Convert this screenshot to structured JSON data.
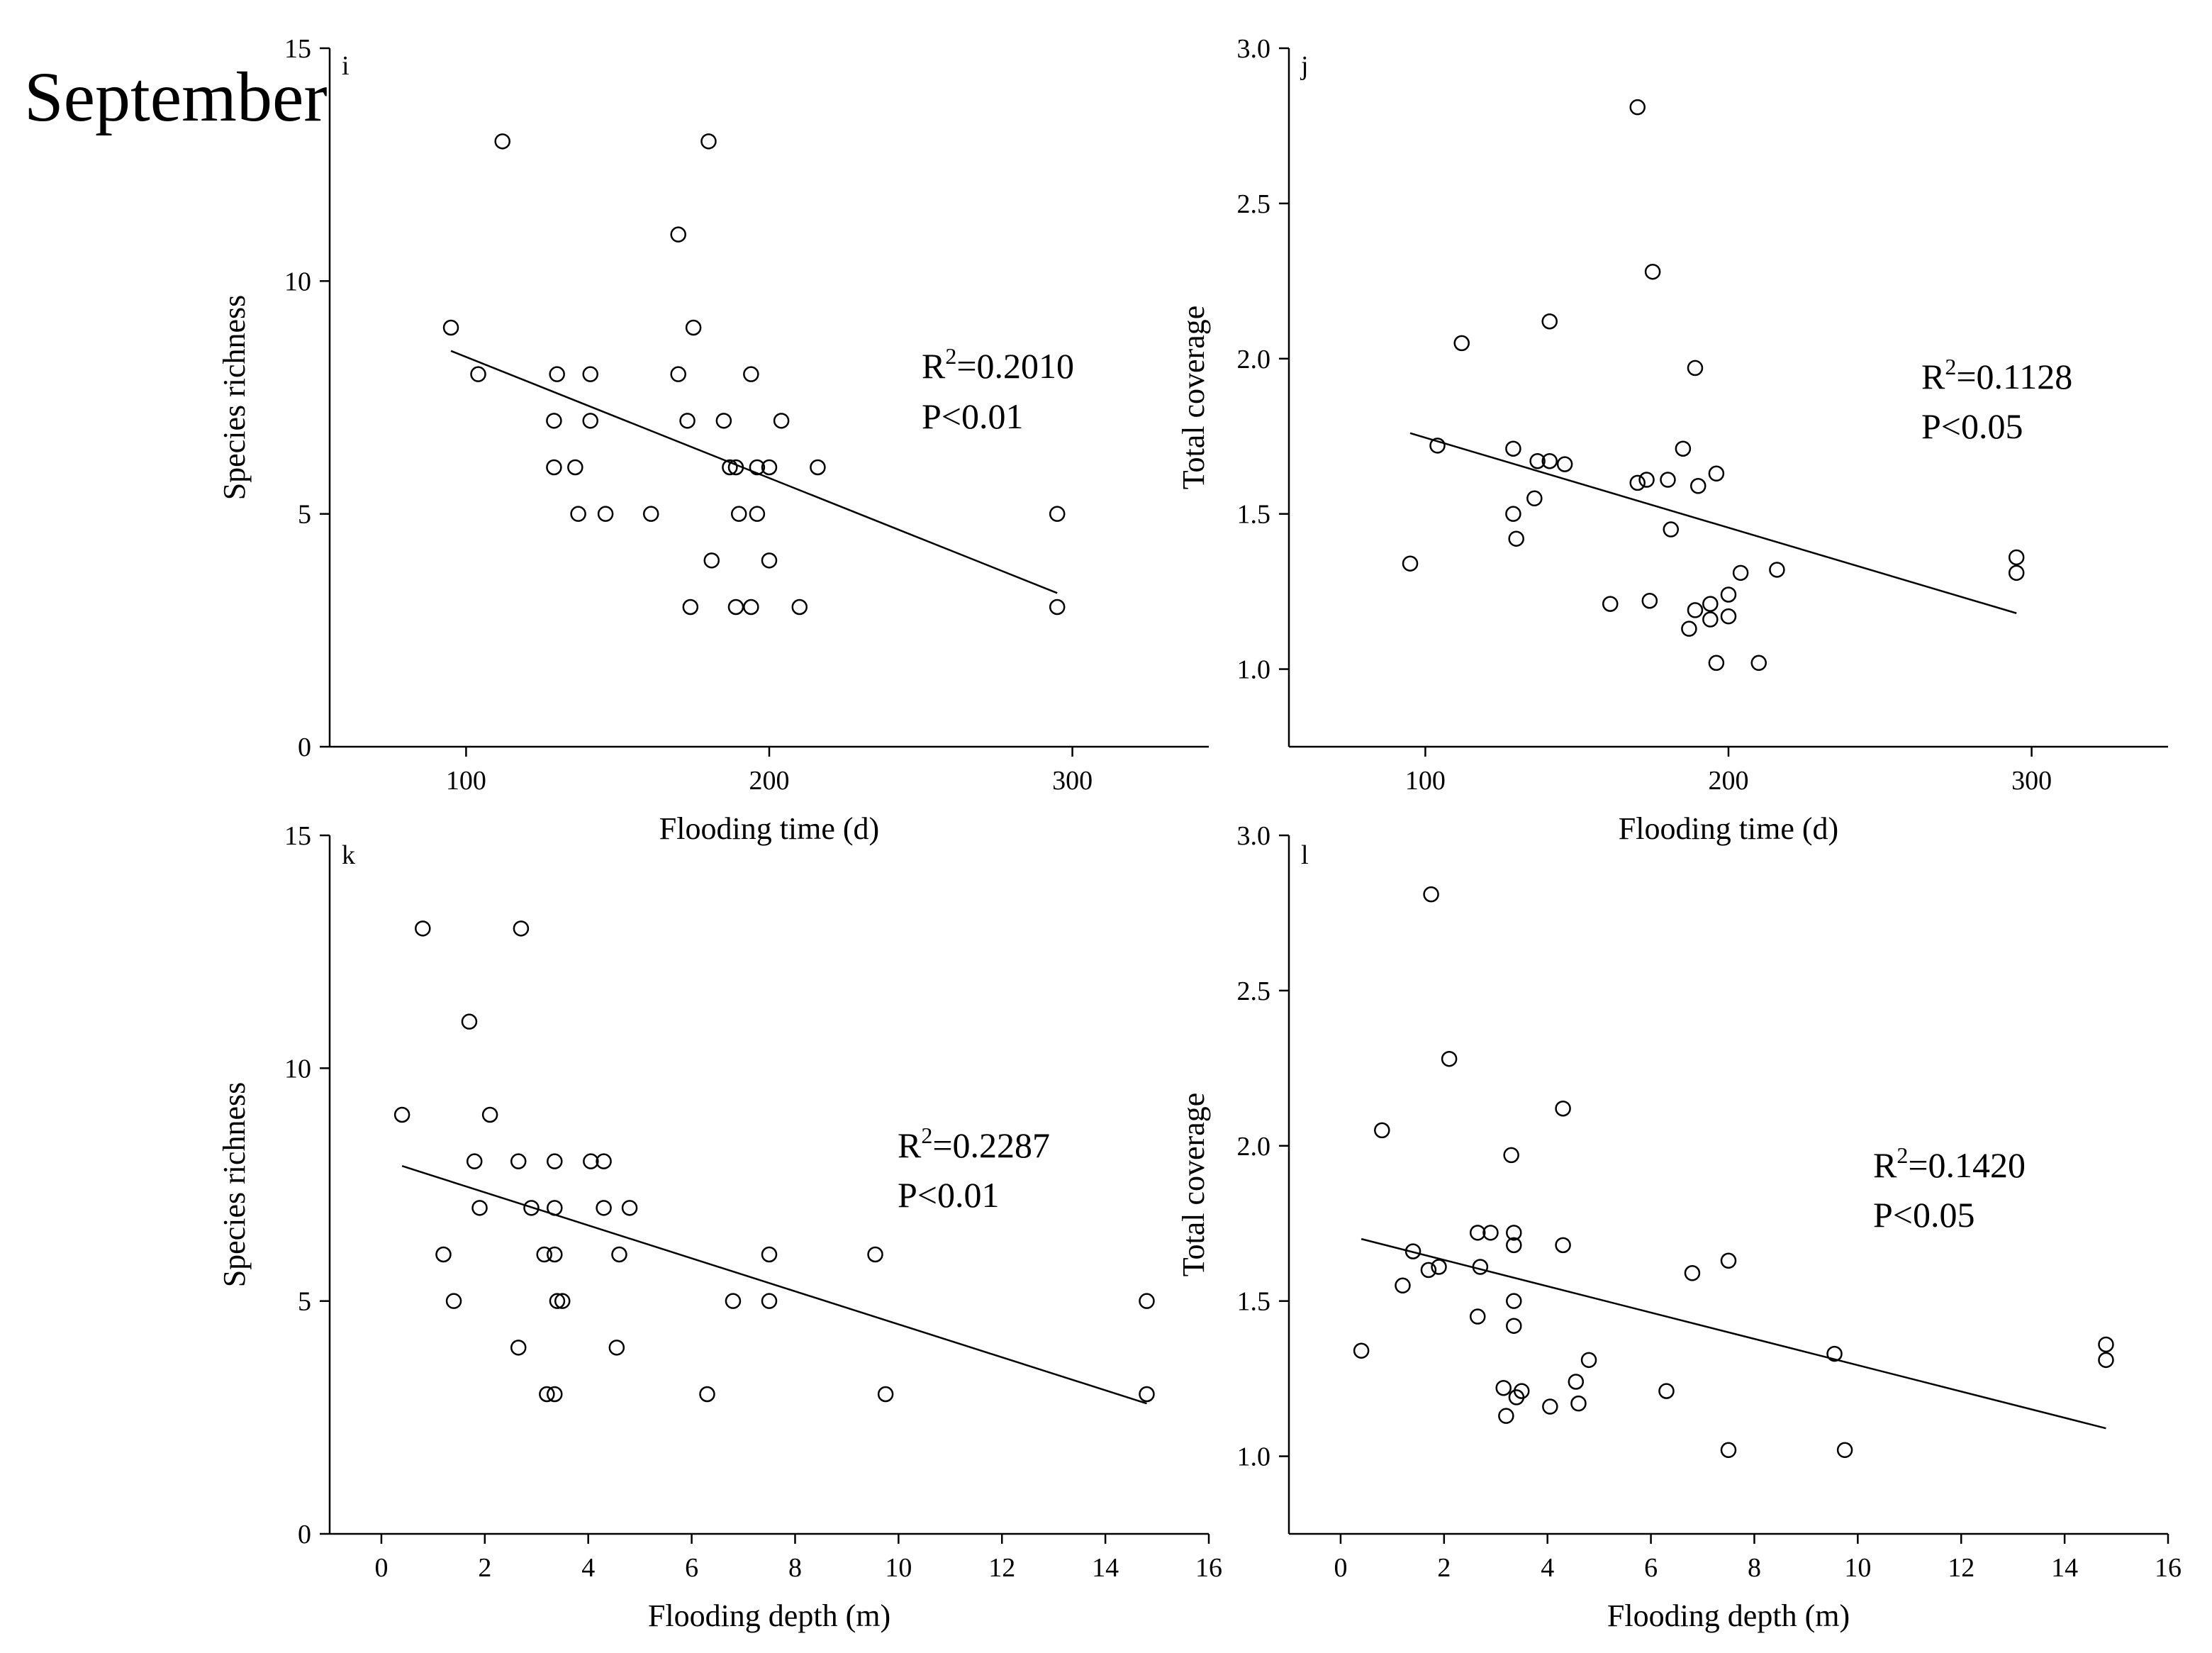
{
  "figure_label": "September",
  "chart_data": [
    {
      "panel": "i",
      "type": "scatter",
      "xlabel": "Flooding time (d)",
      "ylabel": "Species richness",
      "xlim": [
        55,
        345
      ],
      "ylim": [
        0,
        15
      ],
      "xticks": [
        100,
        200,
        300
      ],
      "yticks": [
        0,
        5,
        10,
        15
      ],
      "points": [
        [
          95,
          9
        ],
        [
          104,
          8
        ],
        [
          112,
          13
        ],
        [
          129,
          7
        ],
        [
          129,
          6
        ],
        [
          130,
          8
        ],
        [
          136,
          6
        ],
        [
          137,
          5
        ],
        [
          141,
          8
        ],
        [
          141,
          7
        ],
        [
          146,
          5
        ],
        [
          161,
          5
        ],
        [
          170,
          11
        ],
        [
          170,
          8
        ],
        [
          173,
          7
        ],
        [
          174,
          3
        ],
        [
          175,
          9
        ],
        [
          180,
          13
        ],
        [
          181,
          4
        ],
        [
          185,
          7
        ],
        [
          187,
          6
        ],
        [
          189,
          6
        ],
        [
          189,
          3
        ],
        [
          190,
          5
        ],
        [
          194,
          8
        ],
        [
          194,
          3
        ],
        [
          196,
          6
        ],
        [
          196,
          5
        ],
        [
          200,
          6
        ],
        [
          200,
          4
        ],
        [
          204,
          7
        ],
        [
          210,
          3
        ],
        [
          216,
          6
        ],
        [
          295,
          5
        ],
        [
          295,
          3
        ]
      ],
      "fit_line": [
        [
          95,
          8.5
        ],
        [
          295,
          3.3
        ]
      ],
      "annotation": {
        "r2_prefix": "R",
        "r2_sup": "2",
        "r2_value": "=0.2010",
        "p_text": "P<0.01"
      }
    },
    {
      "panel": "j",
      "type": "scatter",
      "xlabel": "Flooding time (d)",
      "ylabel": "Total coverage",
      "xlim": [
        55,
        345
      ],
      "ylim": [
        0.75,
        3.0
      ],
      "xticks": [
        100,
        200,
        300
      ],
      "yticks": [
        1.0,
        1.5,
        2.0,
        2.5,
        3.0
      ],
      "points": [
        [
          95,
          1.34
        ],
        [
          104,
          1.72
        ],
        [
          112,
          2.05
        ],
        [
          129,
          1.71
        ],
        [
          129,
          1.5
        ],
        [
          130,
          1.42
        ],
        [
          136,
          1.55
        ],
        [
          137,
          1.67
        ],
        [
          141,
          2.12
        ],
        [
          141,
          1.67
        ],
        [
          146,
          1.66
        ],
        [
          161,
          1.21
        ],
        [
          170,
          2.81
        ],
        [
          170,
          1.6
        ],
        [
          173,
          1.61
        ],
        [
          174,
          1.22
        ],
        [
          175,
          2.28
        ],
        [
          180,
          1.61
        ],
        [
          181,
          1.45
        ],
        [
          185,
          1.71
        ],
        [
          187,
          1.13
        ],
        [
          189,
          1.97
        ],
        [
          189,
          1.19
        ],
        [
          190,
          1.59
        ],
        [
          194,
          1.21
        ],
        [
          194,
          1.16
        ],
        [
          196,
          1.63
        ],
        [
          196,
          1.02
        ],
        [
          200,
          1.17
        ],
        [
          200,
          1.24
        ],
        [
          204,
          1.31
        ],
        [
          210,
          1.02
        ],
        [
          216,
          1.32
        ],
        [
          295,
          1.36
        ],
        [
          295,
          1.31
        ]
      ],
      "fit_line": [
        [
          95,
          1.76
        ],
        [
          295,
          1.18
        ]
      ],
      "annotation": {
        "r2_prefix": "R",
        "r2_sup": "2",
        "r2_value": "=0.1128",
        "p_text": "P<0.05"
      }
    },
    {
      "panel": "k",
      "type": "scatter",
      "xlabel": "Flooding depth (m)",
      "ylabel": "Species richness",
      "xlim": [
        -1,
        16
      ],
      "ylim": [
        0,
        15
      ],
      "xticks": [
        0,
        2,
        4,
        6,
        8,
        10,
        12,
        14,
        16
      ],
      "yticks": [
        0,
        5,
        10,
        15
      ],
      "points": [
        [
          0.4,
          9
        ],
        [
          0.8,
          13
        ],
        [
          1.2,
          6
        ],
        [
          1.4,
          5
        ],
        [
          1.7,
          11
        ],
        [
          1.8,
          8
        ],
        [
          1.9,
          7
        ],
        [
          2.1,
          9
        ],
        [
          2.65,
          8
        ],
        [
          2.65,
          4
        ],
        [
          2.7,
          13
        ],
        [
          2.9,
          7
        ],
        [
          3.15,
          6
        ],
        [
          3.2,
          3
        ],
        [
          3.35,
          8
        ],
        [
          3.35,
          7
        ],
        [
          3.35,
          6
        ],
        [
          3.35,
          3
        ],
        [
          3.4,
          5
        ],
        [
          3.5,
          5
        ],
        [
          4.05,
          8
        ],
        [
          4.3,
          8
        ],
        [
          4.3,
          7
        ],
        [
          4.55,
          4
        ],
        [
          4.6,
          6
        ],
        [
          4.8,
          7
        ],
        [
          6.3,
          3
        ],
        [
          6.8,
          5
        ],
        [
          7.5,
          6
        ],
        [
          7.5,
          5
        ],
        [
          9.55,
          6
        ],
        [
          9.75,
          3
        ],
        [
          14.8,
          5
        ],
        [
          14.8,
          3
        ]
      ],
      "fit_line": [
        [
          0.4,
          7.9
        ],
        [
          14.8,
          2.8
        ]
      ],
      "annotation": {
        "r2_prefix": "R",
        "r2_sup": "2",
        "r2_value": "=0.2287",
        "p_text": "P<0.01"
      }
    },
    {
      "panel": "l",
      "type": "scatter",
      "xlabel": "Flooding depth (m)",
      "ylabel": "Total coverage",
      "xlim": [
        -1,
        16
      ],
      "ylim": [
        0.75,
        3.0
      ],
      "xticks": [
        0,
        2,
        4,
        6,
        8,
        10,
        12,
        14,
        16
      ],
      "yticks": [
        1.0,
        1.5,
        2.0,
        2.5,
        3.0
      ],
      "points": [
        [
          0.4,
          1.34
        ],
        [
          0.8,
          2.05
        ],
        [
          1.2,
          1.55
        ],
        [
          1.4,
          1.66
        ],
        [
          1.7,
          1.6
        ],
        [
          1.75,
          2.81
        ],
        [
          1.9,
          1.61
        ],
        [
          2.1,
          2.28
        ],
        [
          2.65,
          1.72
        ],
        [
          2.65,
          1.45
        ],
        [
          2.7,
          1.61
        ],
        [
          2.9,
          1.72
        ],
        [
          3.15,
          1.22
        ],
        [
          3.2,
          1.13
        ],
        [
          3.3,
          1.97
        ],
        [
          3.35,
          1.72
        ],
        [
          3.35,
          1.68
        ],
        [
          3.35,
          1.5
        ],
        [
          3.35,
          1.42
        ],
        [
          3.4,
          1.19
        ],
        [
          3.5,
          1.21
        ],
        [
          4.05,
          1.16
        ],
        [
          4.3,
          2.12
        ],
        [
          4.3,
          1.68
        ],
        [
          4.55,
          1.24
        ],
        [
          4.6,
          1.17
        ],
        [
          4.8,
          1.31
        ],
        [
          6.3,
          1.21
        ],
        [
          6.8,
          1.59
        ],
        [
          7.5,
          1.63
        ],
        [
          7.5,
          1.02
        ],
        [
          9.55,
          1.33
        ],
        [
          9.75,
          1.02
        ],
        [
          14.8,
          1.36
        ],
        [
          14.8,
          1.31
        ]
      ],
      "fit_line": [
        [
          0.4,
          1.7
        ],
        [
          14.8,
          1.09
        ]
      ],
      "annotation": {
        "r2_prefix": "R",
        "r2_sup": "2",
        "r2_value": "=0.1420",
        "p_text": "P<0.05"
      }
    }
  ]
}
